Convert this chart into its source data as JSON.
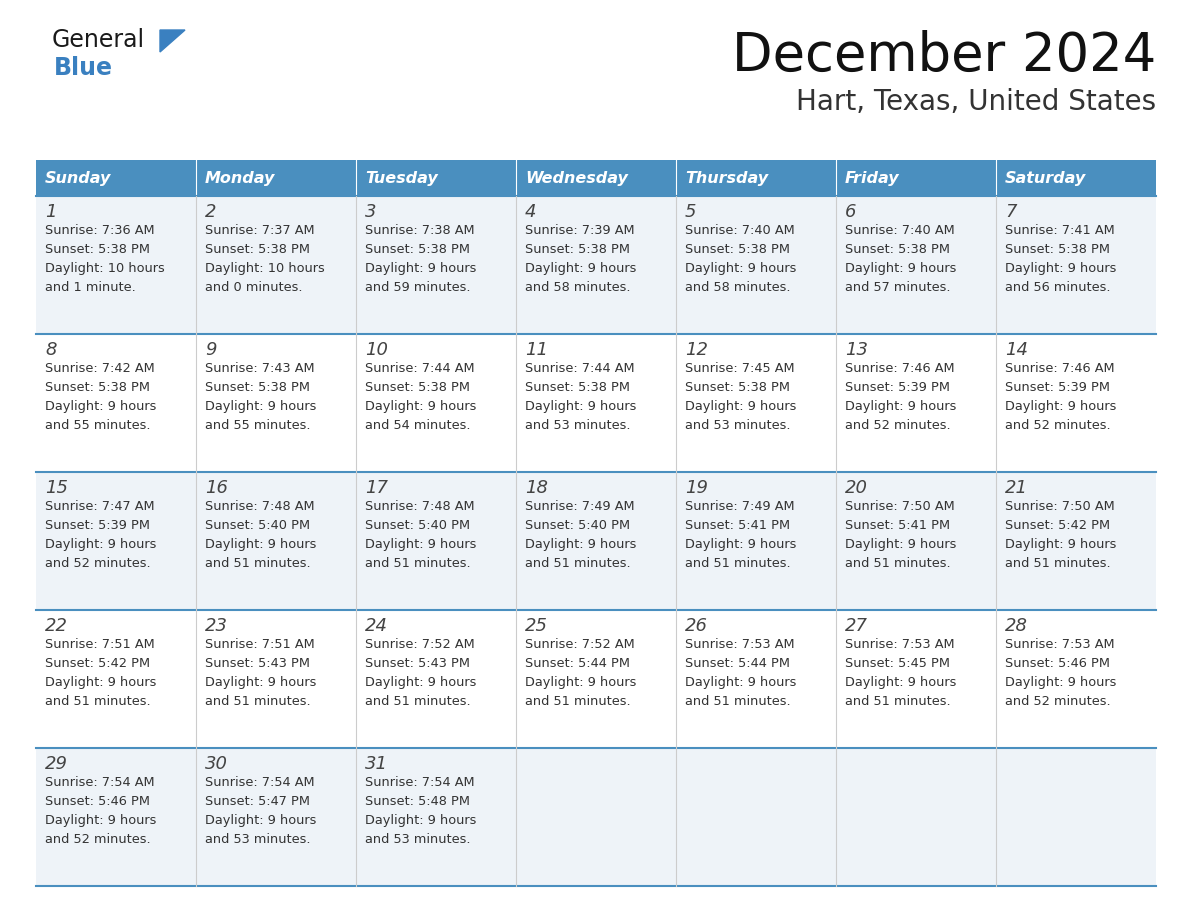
{
  "title": "December 2024",
  "subtitle": "Hart, Texas, United States",
  "header_bg_color": "#4A8FBF",
  "header_text_color": "#FFFFFF",
  "days_of_week": [
    "Sunday",
    "Monday",
    "Tuesday",
    "Wednesday",
    "Thursday",
    "Friday",
    "Saturday"
  ],
  "row_bg_even": "#EEF3F8",
  "row_bg_odd": "#FFFFFF",
  "cell_border_color": "#4A8FBF",
  "text_color": "#333333",
  "calendar_data": [
    [
      {
        "day": 1,
        "sunrise": "7:36 AM",
        "sunset": "5:38 PM",
        "daylight": "10 hours\nand 1 minute."
      },
      {
        "day": 2,
        "sunrise": "7:37 AM",
        "sunset": "5:38 PM",
        "daylight": "10 hours\nand 0 minutes."
      },
      {
        "day": 3,
        "sunrise": "7:38 AM",
        "sunset": "5:38 PM",
        "daylight": "9 hours\nand 59 minutes."
      },
      {
        "day": 4,
        "sunrise": "7:39 AM",
        "sunset": "5:38 PM",
        "daylight": "9 hours\nand 58 minutes."
      },
      {
        "day": 5,
        "sunrise": "7:40 AM",
        "sunset": "5:38 PM",
        "daylight": "9 hours\nand 58 minutes."
      },
      {
        "day": 6,
        "sunrise": "7:40 AM",
        "sunset": "5:38 PM",
        "daylight": "9 hours\nand 57 minutes."
      },
      {
        "day": 7,
        "sunrise": "7:41 AM",
        "sunset": "5:38 PM",
        "daylight": "9 hours\nand 56 minutes."
      }
    ],
    [
      {
        "day": 8,
        "sunrise": "7:42 AM",
        "sunset": "5:38 PM",
        "daylight": "9 hours\nand 55 minutes."
      },
      {
        "day": 9,
        "sunrise": "7:43 AM",
        "sunset": "5:38 PM",
        "daylight": "9 hours\nand 55 minutes."
      },
      {
        "day": 10,
        "sunrise": "7:44 AM",
        "sunset": "5:38 PM",
        "daylight": "9 hours\nand 54 minutes."
      },
      {
        "day": 11,
        "sunrise": "7:44 AM",
        "sunset": "5:38 PM",
        "daylight": "9 hours\nand 53 minutes."
      },
      {
        "day": 12,
        "sunrise": "7:45 AM",
        "sunset": "5:38 PM",
        "daylight": "9 hours\nand 53 minutes."
      },
      {
        "day": 13,
        "sunrise": "7:46 AM",
        "sunset": "5:39 PM",
        "daylight": "9 hours\nand 52 minutes."
      },
      {
        "day": 14,
        "sunrise": "7:46 AM",
        "sunset": "5:39 PM",
        "daylight": "9 hours\nand 52 minutes."
      }
    ],
    [
      {
        "day": 15,
        "sunrise": "7:47 AM",
        "sunset": "5:39 PM",
        "daylight": "9 hours\nand 52 minutes."
      },
      {
        "day": 16,
        "sunrise": "7:48 AM",
        "sunset": "5:40 PM",
        "daylight": "9 hours\nand 51 minutes."
      },
      {
        "day": 17,
        "sunrise": "7:48 AM",
        "sunset": "5:40 PM",
        "daylight": "9 hours\nand 51 minutes."
      },
      {
        "day": 18,
        "sunrise": "7:49 AM",
        "sunset": "5:40 PM",
        "daylight": "9 hours\nand 51 minutes."
      },
      {
        "day": 19,
        "sunrise": "7:49 AM",
        "sunset": "5:41 PM",
        "daylight": "9 hours\nand 51 minutes."
      },
      {
        "day": 20,
        "sunrise": "7:50 AM",
        "sunset": "5:41 PM",
        "daylight": "9 hours\nand 51 minutes."
      },
      {
        "day": 21,
        "sunrise": "7:50 AM",
        "sunset": "5:42 PM",
        "daylight": "9 hours\nand 51 minutes."
      }
    ],
    [
      {
        "day": 22,
        "sunrise": "7:51 AM",
        "sunset": "5:42 PM",
        "daylight": "9 hours\nand 51 minutes."
      },
      {
        "day": 23,
        "sunrise": "7:51 AM",
        "sunset": "5:43 PM",
        "daylight": "9 hours\nand 51 minutes."
      },
      {
        "day": 24,
        "sunrise": "7:52 AM",
        "sunset": "5:43 PM",
        "daylight": "9 hours\nand 51 minutes."
      },
      {
        "day": 25,
        "sunrise": "7:52 AM",
        "sunset": "5:44 PM",
        "daylight": "9 hours\nand 51 minutes."
      },
      {
        "day": 26,
        "sunrise": "7:53 AM",
        "sunset": "5:44 PM",
        "daylight": "9 hours\nand 51 minutes."
      },
      {
        "day": 27,
        "sunrise": "7:53 AM",
        "sunset": "5:45 PM",
        "daylight": "9 hours\nand 51 minutes."
      },
      {
        "day": 28,
        "sunrise": "7:53 AM",
        "sunset": "5:46 PM",
        "daylight": "9 hours\nand 52 minutes."
      }
    ],
    [
      {
        "day": 29,
        "sunrise": "7:54 AM",
        "sunset": "5:46 PM",
        "daylight": "9 hours\nand 52 minutes."
      },
      {
        "day": 30,
        "sunrise": "7:54 AM",
        "sunset": "5:47 PM",
        "daylight": "9 hours\nand 53 minutes."
      },
      {
        "day": 31,
        "sunrise": "7:54 AM",
        "sunset": "5:48 PM",
        "daylight": "9 hours\nand 53 minutes."
      },
      null,
      null,
      null,
      null
    ]
  ]
}
